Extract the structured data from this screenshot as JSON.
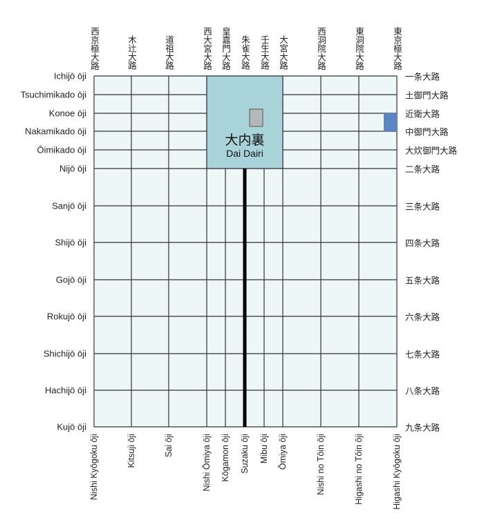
{
  "colors": {
    "grid_fill": "#eef7f8",
    "grid_line": "#333333",
    "dairi_fill": "#a8d3d8",
    "palace_fill": "#b3b9bb",
    "highlight_fill": "#5b86c6",
    "suzaku_line": "#000000"
  },
  "dai_dairi": {
    "kanji": "大内裏",
    "romaji": "Dai Dairi"
  },
  "ew_streets": [
    {
      "romaji": "Ichijō ōji",
      "kanji": "一条大路"
    },
    {
      "romaji": "Tsuchimikado ōji",
      "kanji": "土御門大路"
    },
    {
      "romaji": "Konoe ōji",
      "kanji": "近衛大路"
    },
    {
      "romaji": "Nakamikado ōji",
      "kanji": "中御門大路"
    },
    {
      "romaji": "Ōimikado ōji",
      "kanji": "大炊御門大路"
    },
    {
      "romaji": "Nijō ōji",
      "kanji": "二条大路"
    },
    {
      "romaji": "Sanjō ōji",
      "kanji": "三条大路"
    },
    {
      "romaji": "Shijō ōji",
      "kanji": "四条大路"
    },
    {
      "romaji": "Gojō ōji",
      "kanji": "五条大路"
    },
    {
      "romaji": "Rokujō ōji",
      "kanji": "六条大路"
    },
    {
      "romaji": "Shichijō ōji",
      "kanji": "七条大路"
    },
    {
      "romaji": "Hachijō ōji",
      "kanji": "八条大路"
    },
    {
      "romaji": "Kujō ōji",
      "kanji": "九条大路"
    }
  ],
  "ns_streets": [
    {
      "romaji": "Nishi Kyōgoku ōji",
      "kanji": "西京極大路"
    },
    {
      "romaji": "Kitsuji ōji",
      "kanji": "木辻大路"
    },
    {
      "romaji": "Sai ōji",
      "kanji": "道祖大路"
    },
    {
      "romaji": "Nishi Ōmiya ōji",
      "kanji": "西大宮大路"
    },
    {
      "romaji": "Kōgamon ōji",
      "kanji": "皇嘉門大路"
    },
    {
      "romaji": "Suzaku ōji",
      "kanji": "朱雀大路"
    },
    {
      "romaji": "Mibu ōji",
      "kanji": "壬生大路"
    },
    {
      "romaji": "Ōmiya ōji",
      "kanji": "大宮大路"
    },
    {
      "romaji": "Nishi no Tōin ōji",
      "kanji": "西洞院大路"
    },
    {
      "romaji": "Higashi no Tōin ōji",
      "kanji": "東洞院大路"
    },
    {
      "romaji": "Higashi Kyōgoku ōji",
      "kanji": "東京極大路"
    }
  ]
}
